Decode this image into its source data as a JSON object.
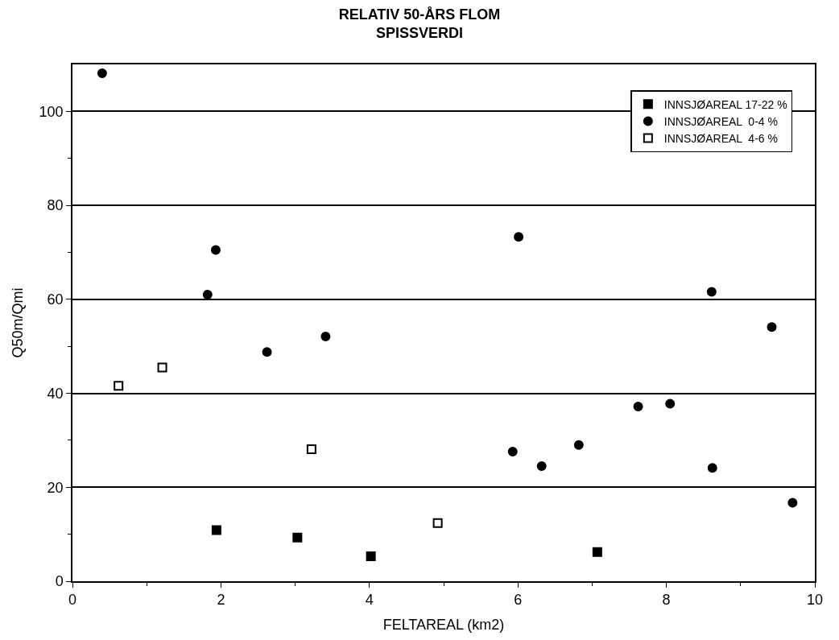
{
  "chart_data": {
    "type": "scatter",
    "title": "RELATIV 50-ÅRS FLOM\nSPISSVERDI",
    "xlabel": "FELTAREAL (km2)",
    "ylabel": "Q50m/Qmi",
    "xlim": [
      0,
      10
    ],
    "xticks": [
      0,
      {
        "value": 1,
        "label": null
      },
      2,
      {
        "value": 3,
        "label": null
      },
      4,
      {
        "value": 5,
        "label": null
      },
      6,
      {
        "value": 7,
        "label": null
      },
      8,
      {
        "value": 9,
        "label": null
      },
      10
    ],
    "ylim": [
      0,
      110
    ],
    "yticks": [
      0,
      {
        "value": 10,
        "label": null
      },
      20,
      {
        "value": 30,
        "label": null
      },
      40,
      {
        "value": 50,
        "label": null
      },
      60,
      {
        "value": 70,
        "label": null
      },
      80,
      {
        "value": 90,
        "label": null
      },
      100
    ],
    "grid": "y",
    "legend": "top right",
    "series": [
      {
        "name": "INNSJØAREAL 17-22 %",
        "color": "#000000",
        "marker": "square",
        "x": [
          1.94,
          3.03,
          4.02,
          7.07
        ],
        "values": [
          10.9,
          9.3,
          5.3,
          6.2
        ]
      },
      {
        "name": "INNSJØAREAL  0-4 %",
        "color": "#000000",
        "marker": "circle",
        "x": [
          0.4,
          1.93,
          1.82,
          2.62,
          3.41,
          6.01,
          5.93,
          6.32,
          6.82,
          7.62,
          8.05,
          8.61,
          8.62,
          9.42,
          9.7
        ],
        "values": [
          108.1,
          70.5,
          61,
          48.8,
          52.1,
          73.3,
          27.6,
          24.5,
          29,
          37.2,
          37.8,
          61.6,
          24.1,
          54.1,
          16.7
        ]
      },
      {
        "name": "INNSJØAREAL  4-6 %",
        "color": "#000000",
        "marker": "square-open",
        "x": [
          0.62,
          1.21,
          3.22,
          4.92
        ],
        "values": [
          41.6,
          45.5,
          28.1,
          12.4
        ]
      }
    ]
  }
}
